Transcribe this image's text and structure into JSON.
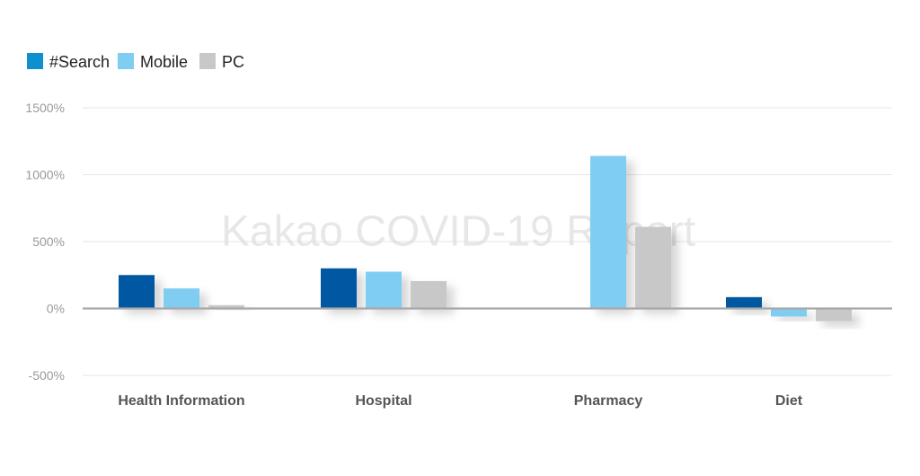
{
  "watermark": "Kakao COVID-19 Report",
  "chart_data": {
    "type": "bar",
    "categories": [
      "Health Information",
      "Hospital",
      "Pharmacy",
      "Diet"
    ],
    "series": [
      {
        "name": "#Search",
        "color": "#0058a3",
        "values": [
          250,
          300,
          0,
          85
        ]
      },
      {
        "name": "Mobile",
        "color": "#80cdf2",
        "values": [
          150,
          275,
          1140,
          -60
        ]
      },
      {
        "name": "PC",
        "color": "#c8c8c8",
        "values": [
          25,
          205,
          610,
          -95
        ]
      }
    ],
    "legend": {
      "placement": "top-left",
      "swatch_color": "#0d8fd0"
    },
    "y_axis": {
      "ticks": [
        1500,
        1000,
        500,
        0,
        -500
      ],
      "tick_labels": [
        "1500%",
        "1000%",
        "500%",
        "0%",
        "-500%"
      ],
      "ylim": [
        -500,
        1500
      ]
    },
    "grid": true
  }
}
